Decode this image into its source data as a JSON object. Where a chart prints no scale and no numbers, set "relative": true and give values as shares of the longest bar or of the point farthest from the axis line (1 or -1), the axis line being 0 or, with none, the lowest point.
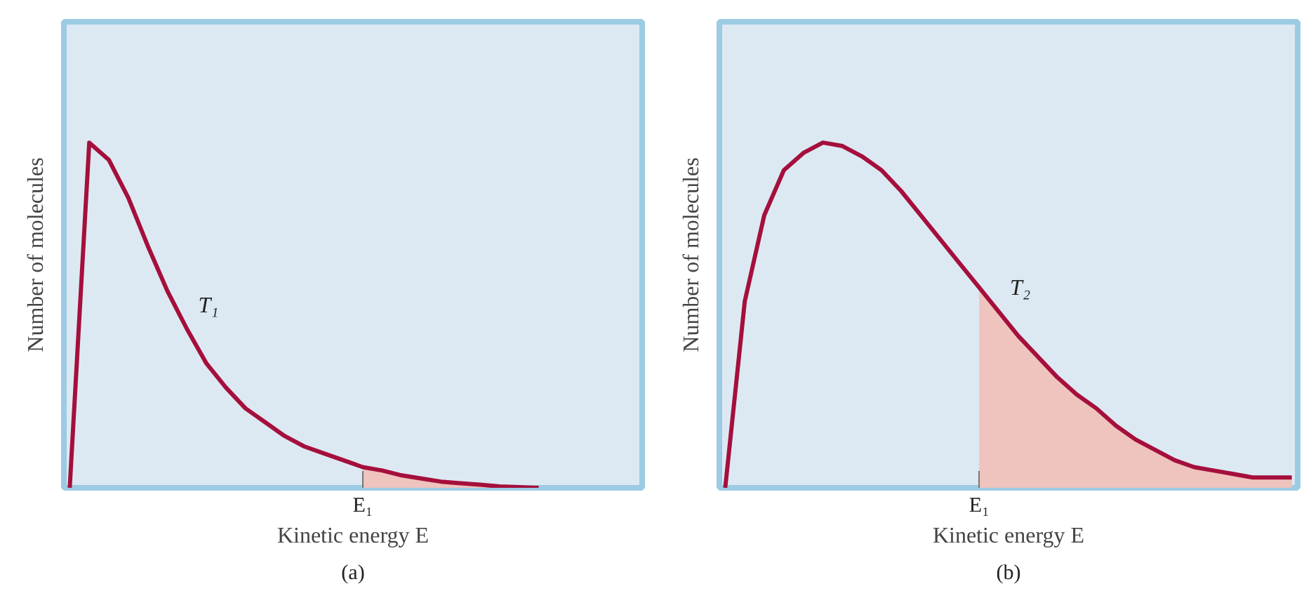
{
  "chart_data": [
    {
      "type": "line",
      "relative": true,
      "xlabel": "Kinetic energy E",
      "ylabel": "Number of molecules",
      "annotations": [
        "E₁",
        "(a)"
      ],
      "categories": [
        null,
        null,
        null,
        null,
        null,
        null,
        null,
        null,
        null,
        null,
        null,
        null,
        null,
        null,
        null,
        null,
        null,
        null,
        null,
        null,
        null,
        null,
        null,
        null,
        null,
        null,
        null,
        null,
        null,
        null
      ],
      "series": [
        {
          "type": "area",
          "color": "#efc3be",
          "values": [
            null,
            null,
            null,
            null,
            null,
            null,
            null,
            null,
            null,
            null,
            null,
            null,
            null,
            null,
            null,
            0.06,
            0.05,
            0.036,
            0.027,
            0.018,
            0.013,
            0.009,
            0.004,
            0.002,
            0,
            null,
            null,
            null,
            null,
            null
          ]
        },
        {
          "name": "T₁",
          "color": "#a50f3c",
          "values": [
            0,
            1.0,
            0.95,
            0.84,
            0.7,
            0.57,
            0.46,
            0.36,
            0.29,
            0.23,
            0.19,
            0.15,
            0.12,
            0.1,
            0.08,
            0.06,
            0.05,
            0.036,
            0.027,
            0.018,
            0.013,
            0.009,
            0.004,
            0.002,
            0,
            null,
            null,
            null,
            null,
            null
          ]
        }
      ]
    },
    {
      "type": "line",
      "relative": true,
      "xlabel": "Kinetic energy E",
      "ylabel": "Number of molecules",
      "annotations": [
        "E₁",
        "(b)"
      ],
      "categories": [
        null,
        null,
        null,
        null,
        null,
        null,
        null,
        null,
        null,
        null,
        null,
        null,
        null,
        null,
        null,
        null,
        null,
        null,
        null,
        null,
        null,
        null,
        null,
        null,
        null,
        null,
        null,
        null,
        null,
        null
      ],
      "series": [
        {
          "type": "area",
          "color": "#efc3be",
          "values": [
            null,
            null,
            null,
            null,
            null,
            null,
            null,
            null,
            null,
            null,
            null,
            null,
            null,
            0.58,
            0.51,
            0.44,
            0.38,
            0.32,
            0.27,
            0.23,
            0.18,
            0.14,
            0.11,
            0.08,
            0.06,
            0.05,
            0.04,
            0.03,
            0.03,
            0.03
          ]
        },
        {
          "name": "T₂",
          "color": "#a50f3c",
          "values": [
            0,
            0.54,
            0.79,
            0.92,
            0.97,
            1.0,
            0.99,
            0.96,
            0.92,
            0.86,
            0.79,
            0.72,
            0.65,
            0.58,
            0.51,
            0.44,
            0.38,
            0.32,
            0.27,
            0.23,
            0.18,
            0.14,
            0.11,
            0.08,
            0.06,
            0.05,
            0.04,
            0.03,
            0.03,
            0.03
          ]
        }
      ]
    }
  ]
}
